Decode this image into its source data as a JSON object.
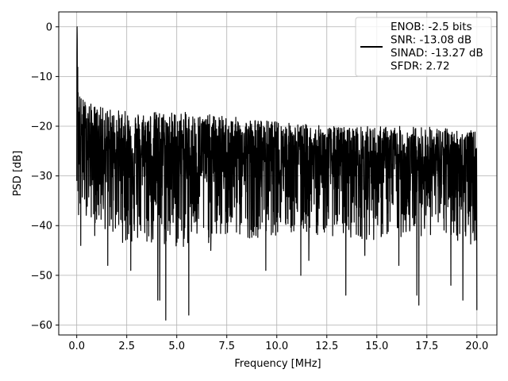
{
  "chart_data": {
    "type": "line",
    "title": "",
    "xlabel": "Frequency [MHz]",
    "ylabel": "PSD [dB]",
    "xlim": [
      -0.9,
      21.0
    ],
    "ylim": [
      -62,
      3
    ],
    "x_ticks": [
      0.0,
      2.5,
      5.0,
      7.5,
      10.0,
      12.5,
      15.0,
      17.5,
      20.0
    ],
    "x_tick_labels": [
      "0.0",
      "2.5",
      "5.0",
      "7.5",
      "10.0",
      "12.5",
      "15.0",
      "17.5",
      "20.0"
    ],
    "y_ticks": [
      0,
      -10,
      -20,
      -30,
      -40,
      -50,
      -60
    ],
    "y_tick_labels": [
      "0",
      "−10",
      "−20",
      "−30",
      "−40",
      "−50",
      "−60"
    ],
    "grid": true,
    "legend_position": "top-right",
    "series": [
      {
        "color": "#000000",
        "x_range": [
          0.0,
          20.0
        ],
        "peak": {
          "x": 0.02,
          "y": 0
        },
        "envelope": {
          "x": [
            0.0,
            0.1,
            0.2,
            0.5,
            1.0,
            2.5,
            5.0,
            7.5,
            10.0,
            12.5,
            15.0,
            17.5,
            20.0
          ],
          "upper": [
            0,
            -12,
            -14,
            -15,
            -16,
            -17,
            -17,
            -18,
            -19,
            -20,
            -20,
            -20,
            -21
          ],
          "lower": [
            -31,
            -43,
            -38,
            -38,
            -40,
            -44,
            -45,
            -43,
            -42,
            -42,
            -43,
            -42,
            -44
          ]
        },
        "deep_dips": [
          {
            "x": 0.2,
            "y": -44
          },
          {
            "x": 0.9,
            "y": -42
          },
          {
            "x": 1.55,
            "y": -48
          },
          {
            "x": 2.7,
            "y": -49
          },
          {
            "x": 4.05,
            "y": -55
          },
          {
            "x": 4.15,
            "y": -55
          },
          {
            "x": 4.45,
            "y": -59
          },
          {
            "x": 5.6,
            "y": -58
          },
          {
            "x": 6.7,
            "y": -45
          },
          {
            "x": 9.45,
            "y": -49
          },
          {
            "x": 11.2,
            "y": -50
          },
          {
            "x": 11.6,
            "y": -47
          },
          {
            "x": 13.45,
            "y": -54
          },
          {
            "x": 14.4,
            "y": -46
          },
          {
            "x": 16.1,
            "y": -48
          },
          {
            "x": 17.0,
            "y": -54
          },
          {
            "x": 17.1,
            "y": -56
          },
          {
            "x": 18.7,
            "y": -52
          },
          {
            "x": 19.3,
            "y": -55
          },
          {
            "x": 20.0,
            "y": -57
          }
        ]
      }
    ],
    "legend": {
      "lines": [
        "ENOB: -2.5 bits",
        "SNR: -13.08 dB",
        "SINAD: -13.27 dB",
        "SFDR: 2.72"
      ]
    }
  }
}
